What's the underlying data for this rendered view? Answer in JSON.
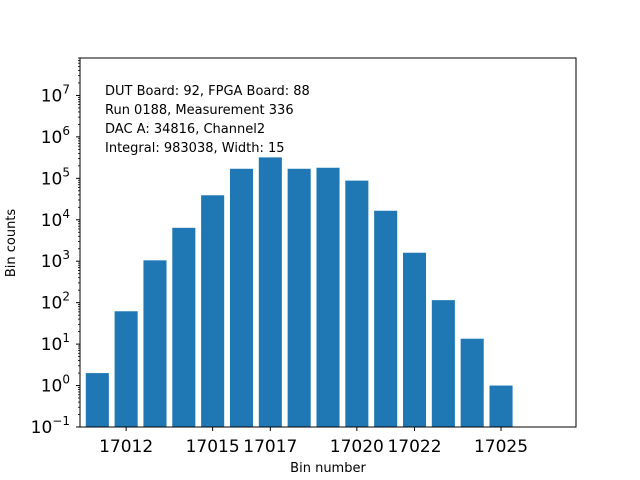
{
  "chart_data": {
    "type": "bar",
    "title": "",
    "xlabel": "Bin number",
    "ylabel": "Bin counts",
    "yscale": "log",
    "ylim": [
      0.1,
      80000000
    ],
    "xlim": [
      17010.4,
      17027.6
    ],
    "x": [
      17011,
      17012,
      17013,
      17014,
      17015,
      17016,
      17017,
      17018,
      17019,
      17020,
      17021,
      17022,
      17023,
      17024,
      17025,
      17026
    ],
    "values": [
      2,
      62,
      1050,
      6400,
      39000,
      170000,
      320000,
      170000,
      180000,
      88000,
      16500,
      1600,
      115,
      13.5,
      1,
      0
    ],
    "bar_color": "#1f77b4",
    "grid": false,
    "legend": false,
    "x_ticks": [
      {
        "value": 17012,
        "label": "17012"
      },
      {
        "value": 17015,
        "label": "17015"
      },
      {
        "value": 17017,
        "label": "17017"
      },
      {
        "value": 17020,
        "label": "17020"
      },
      {
        "value": 17022,
        "label": "17022"
      },
      {
        "value": 17025,
        "label": "17025"
      }
    ],
    "y_ticks": [
      {
        "exp": -1,
        "base": "10",
        "sup": "−1"
      },
      {
        "exp": 0,
        "base": "10",
        "sup": "0"
      },
      {
        "exp": 1,
        "base": "10",
        "sup": "1"
      },
      {
        "exp": 2,
        "base": "10",
        "sup": "2"
      },
      {
        "exp": 3,
        "base": "10",
        "sup": "3"
      },
      {
        "exp": 4,
        "base": "10",
        "sup": "4"
      },
      {
        "exp": 5,
        "base": "10",
        "sup": "5"
      },
      {
        "exp": 6,
        "base": "10",
        "sup": "6"
      },
      {
        "exp": 7,
        "base": "10",
        "sup": "7"
      }
    ],
    "annotations": [
      "DUT Board: 92, FPGA Board: 88",
      "Run 0188, Measurement 336",
      "DAC A: 34816, Channel2",
      "Integral: 983038, Width: 15"
    ]
  }
}
